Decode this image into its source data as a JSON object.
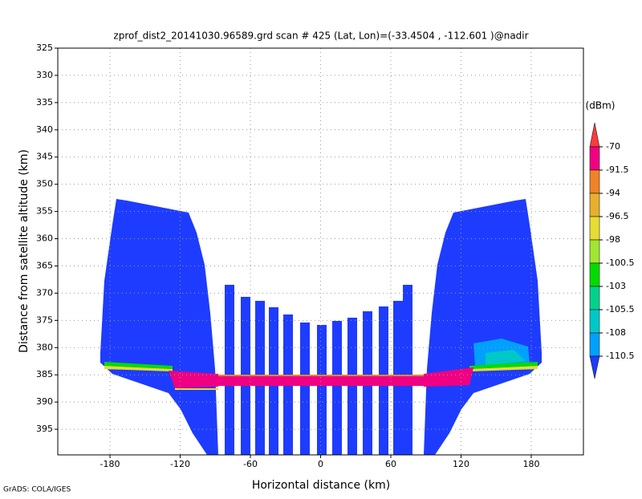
{
  "chart_data": {
    "type": "image",
    "title": "zprof_dist2_20141030.96589.grd  scan # 425  (Lat, Lon)=(-33.4504 , -112.601 )@nadir",
    "x_label": "Horizontal distance (km)",
    "y_label": "Distance from satellite altitude (km)",
    "xlim": [
      -224.6,
      224.6
    ],
    "xticks": [
      -180,
      -120,
      -60,
      0,
      60,
      120,
      180
    ],
    "ylim": [
      399.7,
      325
    ],
    "yticks": [
      325,
      330,
      335,
      340,
      345,
      350,
      355,
      360,
      365,
      370,
      375,
      380,
      385,
      390,
      395
    ],
    "grid": true,
    "colorbar": {
      "label": "(dBm)",
      "levels": [
        -70,
        -91.5,
        -94,
        -96.5,
        -98,
        -100.5,
        -103,
        -105.5,
        -108,
        -110.5
      ],
      "colors": [
        "#fa3c3c",
        "#f00082",
        "#f08228",
        "#e6af2d",
        "#e6dc32",
        "#a0e632",
        "#00dc00",
        "#00d28c",
        "#00c8c8",
        "#00a0ff",
        "#1e3cff"
      ]
    },
    "footer": "GrADS: COLA/IGES"
  }
}
